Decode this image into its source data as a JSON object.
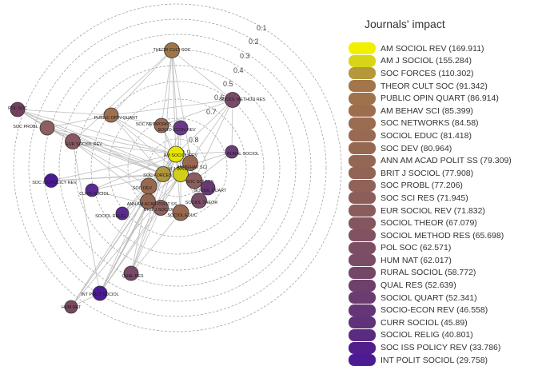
{
  "network": {
    "ring_labels": [
      "0.1",
      "0.2",
      "0.3",
      "0.4",
      "0.5",
      "0.6",
      "0.7",
      "0.8",
      "0.9"
    ],
    "nodes": [
      {
        "id": "theor",
        "label": "THEOR CULT SOC",
        "color": "#a0754a"
      },
      {
        "id": "polsoc",
        "label": "POL SOC",
        "color": "#744060"
      },
      {
        "id": "socmeth",
        "label": "SOCIOL METHOD RES",
        "color": "#7a4a68"
      },
      {
        "id": "socprob",
        "label": "SOC PROBL",
        "color": "#8e5f5e"
      },
      {
        "id": "public",
        "label": "PUBLIC OPIN QUART",
        "color": "#a0704e"
      },
      {
        "id": "socnet",
        "label": "SOC NETWORKS",
        "color": "#9a6a55"
      },
      {
        "id": "socecon",
        "label": "SOCIO-ECON REV",
        "color": "#6a3888"
      },
      {
        "id": "eur",
        "label": "EUR SOCIOL REV",
        "color": "#8a5862"
      },
      {
        "id": "rural",
        "label": "RURAL SOCIOL",
        "color": "#6a3c78"
      },
      {
        "id": "issrev",
        "label": "SOC ISS POLICY REV",
        "color": "#4a1a95"
      },
      {
        "id": "currsoc",
        "label": "CURR SOCIOL",
        "color": "#5a2895"
      },
      {
        "id": "relig",
        "label": "SOCIOL RELIG",
        "color": "#5a2a90"
      },
      {
        "id": "qualres",
        "label": "QUAL RES",
        "color": "#7a4868"
      },
      {
        "id": "intpol",
        "label": "INT POLIT SOCIOL",
        "color": "#4a1a98"
      },
      {
        "id": "humnat",
        "label": "HUM NAT",
        "color": "#7a4860"
      },
      {
        "id": "amsocrev",
        "label": "AM SOCIOL REV",
        "color": "#e6e600"
      },
      {
        "id": "amjsoc",
        "label": "AM J SOCIOL",
        "color": "#d2cf18"
      },
      {
        "id": "socforces",
        "label": "SOC FORCES",
        "color": "#b2963a"
      },
      {
        "id": "ambehav",
        "label": "AM BEHAV SCI",
        "color": "#9a6850"
      },
      {
        "id": "socsci",
        "label": "SOC SCI RES",
        "color": "#8e5e5c"
      },
      {
        "id": "socdev",
        "label": "SOC DEV",
        "color": "#98684f"
      },
      {
        "id": "britj",
        "label": "BRIT J SOCIOL",
        "color": "#8e5e5c"
      },
      {
        "id": "socquart",
        "label": "SOCIOL QUART",
        "color": "#6a3878"
      },
      {
        "id": "sociolth",
        "label": "SOCIOL THEOR",
        "color": "#7a4e66"
      },
      {
        "id": "socedu",
        "label": "SOCIOL EDUC",
        "color": "#98684f"
      },
      {
        "id": "annam",
        "label": "ANN AM ACAD POLIT SS",
        "color": "#93644f"
      }
    ]
  },
  "legend": {
    "title": "Journals' impact",
    "items": [
      {
        "label": "AM SOCIOL REV (169.911)",
        "color": "#f0f000"
      },
      {
        "label": "AM J SOCIOL (155.284)",
        "color": "#d8d418"
      },
      {
        "label": "SOC FORCES (110.302)",
        "color": "#b4983a"
      },
      {
        "label": "THEOR CULT SOC (91.342)",
        "color": "#a2764a"
      },
      {
        "label": "PUBLIC OPIN QUART (86.914)",
        "color": "#a0724c"
      },
      {
        "label": "AM BEHAV SCI (85.399)",
        "color": "#9c6e4e"
      },
      {
        "label": "SOC NETWORKS (84.58)",
        "color": "#9a6c50"
      },
      {
        "label": "SOCIOL EDUC (81.418)",
        "color": "#986a52"
      },
      {
        "label": "SOC DEV (80.964)",
        "color": "#966852"
      },
      {
        "label": "ANN AM ACAD POLIT SS (79.309)",
        "color": "#946654"
      },
      {
        "label": "BRIT J SOCIOL (77.908)",
        "color": "#926456"
      },
      {
        "label": "SOC PROBL (77.206)",
        "color": "#906258"
      },
      {
        "label": "SOC SCI RES (71.945)",
        "color": "#8c5e5a"
      },
      {
        "label": "EUR SOCIOL REV (71.832)",
        "color": "#8a5c5c"
      },
      {
        "label": "SOCIOL THEOR (67.079)",
        "color": "#84565e"
      },
      {
        "label": "SOCIOL METHOD RES (65.698)",
        "color": "#805262"
      },
      {
        "label": "POL SOC (62.571)",
        "color": "#7c4e64"
      },
      {
        "label": "HUM NAT (62.017)",
        "color": "#7a4c66"
      },
      {
        "label": "RURAL SOCIOL (58.772)",
        "color": "#744668"
      },
      {
        "label": "QUAL RES (52.639)",
        "color": "#6e406c"
      },
      {
        "label": "SOCIOL QUART (52.341)",
        "color": "#6a3c70"
      },
      {
        "label": "SOCIO-ECON REV (46.558)",
        "color": "#643676"
      },
      {
        "label": "CURR SOCIOL (45.89)",
        "color": "#60327a"
      },
      {
        "label": "SOCIOL RELIG (40.801)",
        "color": "#5a2c80"
      },
      {
        "label": "SOC ISS POLICY REV (33.786)",
        "color": "#521e8c"
      },
      {
        "label": "INT POLIT SOCIOL (29.758)",
        "color": "#4c1a92"
      }
    ]
  }
}
